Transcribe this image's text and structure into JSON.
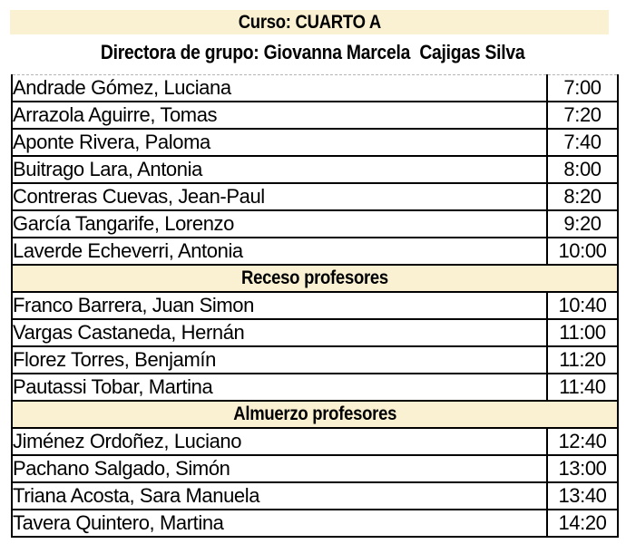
{
  "header": {
    "course_title": "Curso: CUARTO A",
    "director_line": "Directora de grupo: Giovanna Marcela  Cajigas Silva"
  },
  "colors": {
    "band_background": "#FAF0D2",
    "table_border": "#000000",
    "text": "#000000"
  },
  "schedule": {
    "rows": [
      {
        "type": "student",
        "name": "Andrade Gómez, Luciana",
        "time": "7:00"
      },
      {
        "type": "student",
        "name": "Arrazola Aguirre, Tomas",
        "time": "7:20"
      },
      {
        "type": "student",
        "name": "Aponte Rivera, Paloma",
        "time": "7:40"
      },
      {
        "type": "student",
        "name": "Buitrago Lara, Antonia",
        "time": "8:00"
      },
      {
        "type": "student",
        "name": "Contreras Cuevas, Jean-Paul",
        "time": "8:20"
      },
      {
        "type": "student",
        "name": "García Tangarife, Lorenzo",
        "time": "9:20"
      },
      {
        "type": "student",
        "name": "Laverde Echeverri, Antonia",
        "time": "10:00"
      },
      {
        "type": "section",
        "label": "Receso profesores"
      },
      {
        "type": "student",
        "name": "Franco Barrera, Juan Simon",
        "time": "10:40"
      },
      {
        "type": "student",
        "name": "Vargas Castaneda, Hernán",
        "time": "11:00"
      },
      {
        "type": "student",
        "name": "Florez Torres, Benjamín",
        "time": "11:20"
      },
      {
        "type": "student",
        "name": "Pautassi Tobar, Martina",
        "time": "11:40"
      },
      {
        "type": "section",
        "label": "Almuerzo profesores"
      },
      {
        "type": "student",
        "name": "Jiménez Ordoñez, Luciano",
        "time": "12:40"
      },
      {
        "type": "student",
        "name": "Pachano Salgado, Simón",
        "time": "13:00"
      },
      {
        "type": "student",
        "name": "Triana Acosta, Sara Manuela",
        "time": "13:40"
      },
      {
        "type": "student",
        "name": "Tavera Quintero, Martina",
        "time": "14:20"
      }
    ]
  }
}
